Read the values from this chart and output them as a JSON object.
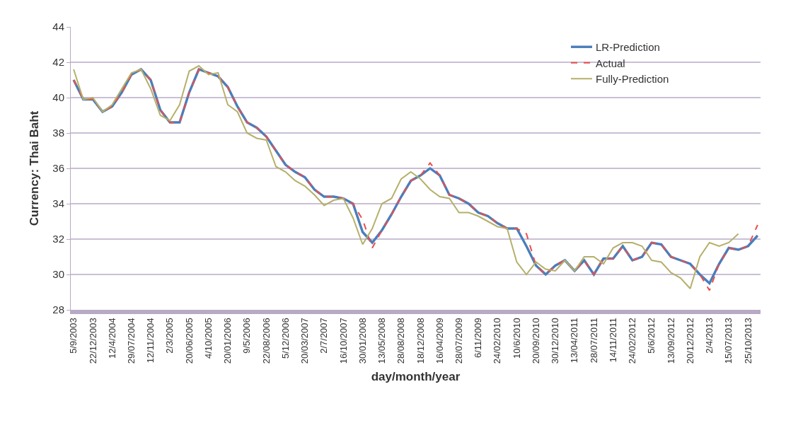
{
  "chart_data": {
    "type": "line",
    "xlabel": "day/month/year",
    "ylabel": "Currency: Thai Baht",
    "categories": [
      "5/9/2003",
      null,
      "22/12/2003",
      null,
      "12/4/2004",
      null,
      "29/07/2004",
      null,
      "12/11/2004",
      null,
      "2/3/2005",
      null,
      "20/06/2005",
      null,
      "4/10/2005",
      null,
      "20/01/2006",
      null,
      "9/5/2006",
      null,
      "22/08/2006",
      null,
      "5/12/2006",
      null,
      "20/03/2007",
      null,
      "2/7/2007",
      null,
      "16/10/2007",
      null,
      "30/01/2008",
      null,
      "13/05/2008",
      null,
      "28/08/2008",
      null,
      "18/12/2008",
      null,
      "16/04/2009",
      null,
      "28/07/2009",
      null,
      "6/11/2009",
      null,
      "24/02/2010",
      null,
      "10/6/2010",
      null,
      "20/09/2010",
      null,
      "30/12/2010",
      null,
      "13/04/2011",
      null,
      "28/07/2011",
      null,
      "14/11/2011",
      null,
      "24/02/2012",
      null,
      "5/6/2012",
      null,
      "13/09/2012",
      null,
      "20/12/2012",
      null,
      "2/4/2013",
      null,
      "15/07/2013",
      null,
      "25/10/2013",
      null
    ],
    "series": [
      {
        "name": "LR-Prediction",
        "color": "#4a7ebb",
        "line_style": "solid",
        "values": [
          41.0,
          39.9,
          39.9,
          39.2,
          39.5,
          40.3,
          41.3,
          41.6,
          41.0,
          39.3,
          38.6,
          38.6,
          40.3,
          41.6,
          41.4,
          41.2,
          40.6,
          39.5,
          38.6,
          38.3,
          37.8,
          37.0,
          36.2,
          35.8,
          35.5,
          34.8,
          34.4,
          34.4,
          34.3,
          34.0,
          32.4,
          31.8,
          32.5,
          33.4,
          34.4,
          35.3,
          35.6,
          36.0,
          35.6,
          34.5,
          34.3,
          34.0,
          33.5,
          33.3,
          32.9,
          32.6,
          32.6,
          31.6,
          30.5,
          30.0,
          30.5,
          30.8,
          30.2,
          30.8,
          30.0,
          30.9,
          30.9,
          31.6,
          30.8,
          31.0,
          31.8,
          31.7,
          31.0,
          30.8,
          30.6,
          30.0,
          29.5,
          30.6,
          31.5,
          31.4,
          31.6,
          32.2
        ]
      },
      {
        "name": "Actual",
        "color": "#e8504d",
        "line_style": "dashed",
        "values": [
          41.0,
          39.9,
          39.9,
          39.2,
          39.5,
          40.3,
          41.3,
          41.6,
          41.0,
          39.3,
          38.6,
          38.6,
          40.3,
          41.6,
          41.4,
          41.2,
          40.6,
          39.5,
          38.6,
          38.3,
          37.8,
          37.0,
          36.2,
          35.8,
          35.5,
          34.8,
          34.4,
          34.4,
          34.3,
          34.0,
          33.1,
          31.5,
          32.5,
          33.4,
          34.4,
          35.3,
          35.6,
          36.3,
          35.6,
          34.5,
          34.3,
          34.0,
          33.5,
          33.3,
          32.9,
          32.6,
          32.6,
          32.3,
          30.5,
          30.0,
          30.5,
          30.8,
          30.2,
          30.8,
          30.0,
          30.9,
          30.9,
          31.6,
          30.8,
          31.0,
          31.8,
          31.7,
          31.0,
          30.8,
          30.6,
          30.0,
          29.1,
          30.6,
          31.5,
          31.4,
          31.6,
          32.8
        ]
      },
      {
        "name": "Fully-Prediction",
        "color": "#b5b06a",
        "line_style": "solid",
        "values": [
          41.6,
          39.9,
          40.0,
          39.2,
          39.6,
          40.5,
          41.4,
          41.6,
          40.5,
          39.0,
          38.7,
          39.6,
          41.5,
          41.8,
          41.3,
          41.4,
          39.6,
          39.2,
          38.0,
          37.7,
          37.6,
          36.1,
          35.8,
          35.3,
          35.0,
          34.5,
          33.9,
          34.2,
          34.3,
          33.2,
          31.7,
          32.6,
          34.0,
          34.3,
          35.4,
          35.8,
          35.4,
          34.8,
          34.4,
          34.3,
          33.5,
          33.5,
          33.3,
          33.0,
          32.7,
          32.6,
          30.7,
          30.0,
          30.7,
          30.3,
          30.2,
          30.8,
          30.2,
          31.0,
          31.0,
          30.6,
          31.5,
          31.8,
          31.8,
          31.6,
          30.8,
          30.7,
          30.1,
          29.8,
          29.2,
          31.0,
          31.8,
          31.6,
          31.8,
          32.3,
          null,
          null
        ]
      }
    ],
    "ylim": [
      28,
      44
    ],
    "yticks": [
      28,
      30,
      32,
      34,
      36,
      38,
      40,
      42,
      44
    ],
    "grid": "y",
    "legend": "top right"
  }
}
